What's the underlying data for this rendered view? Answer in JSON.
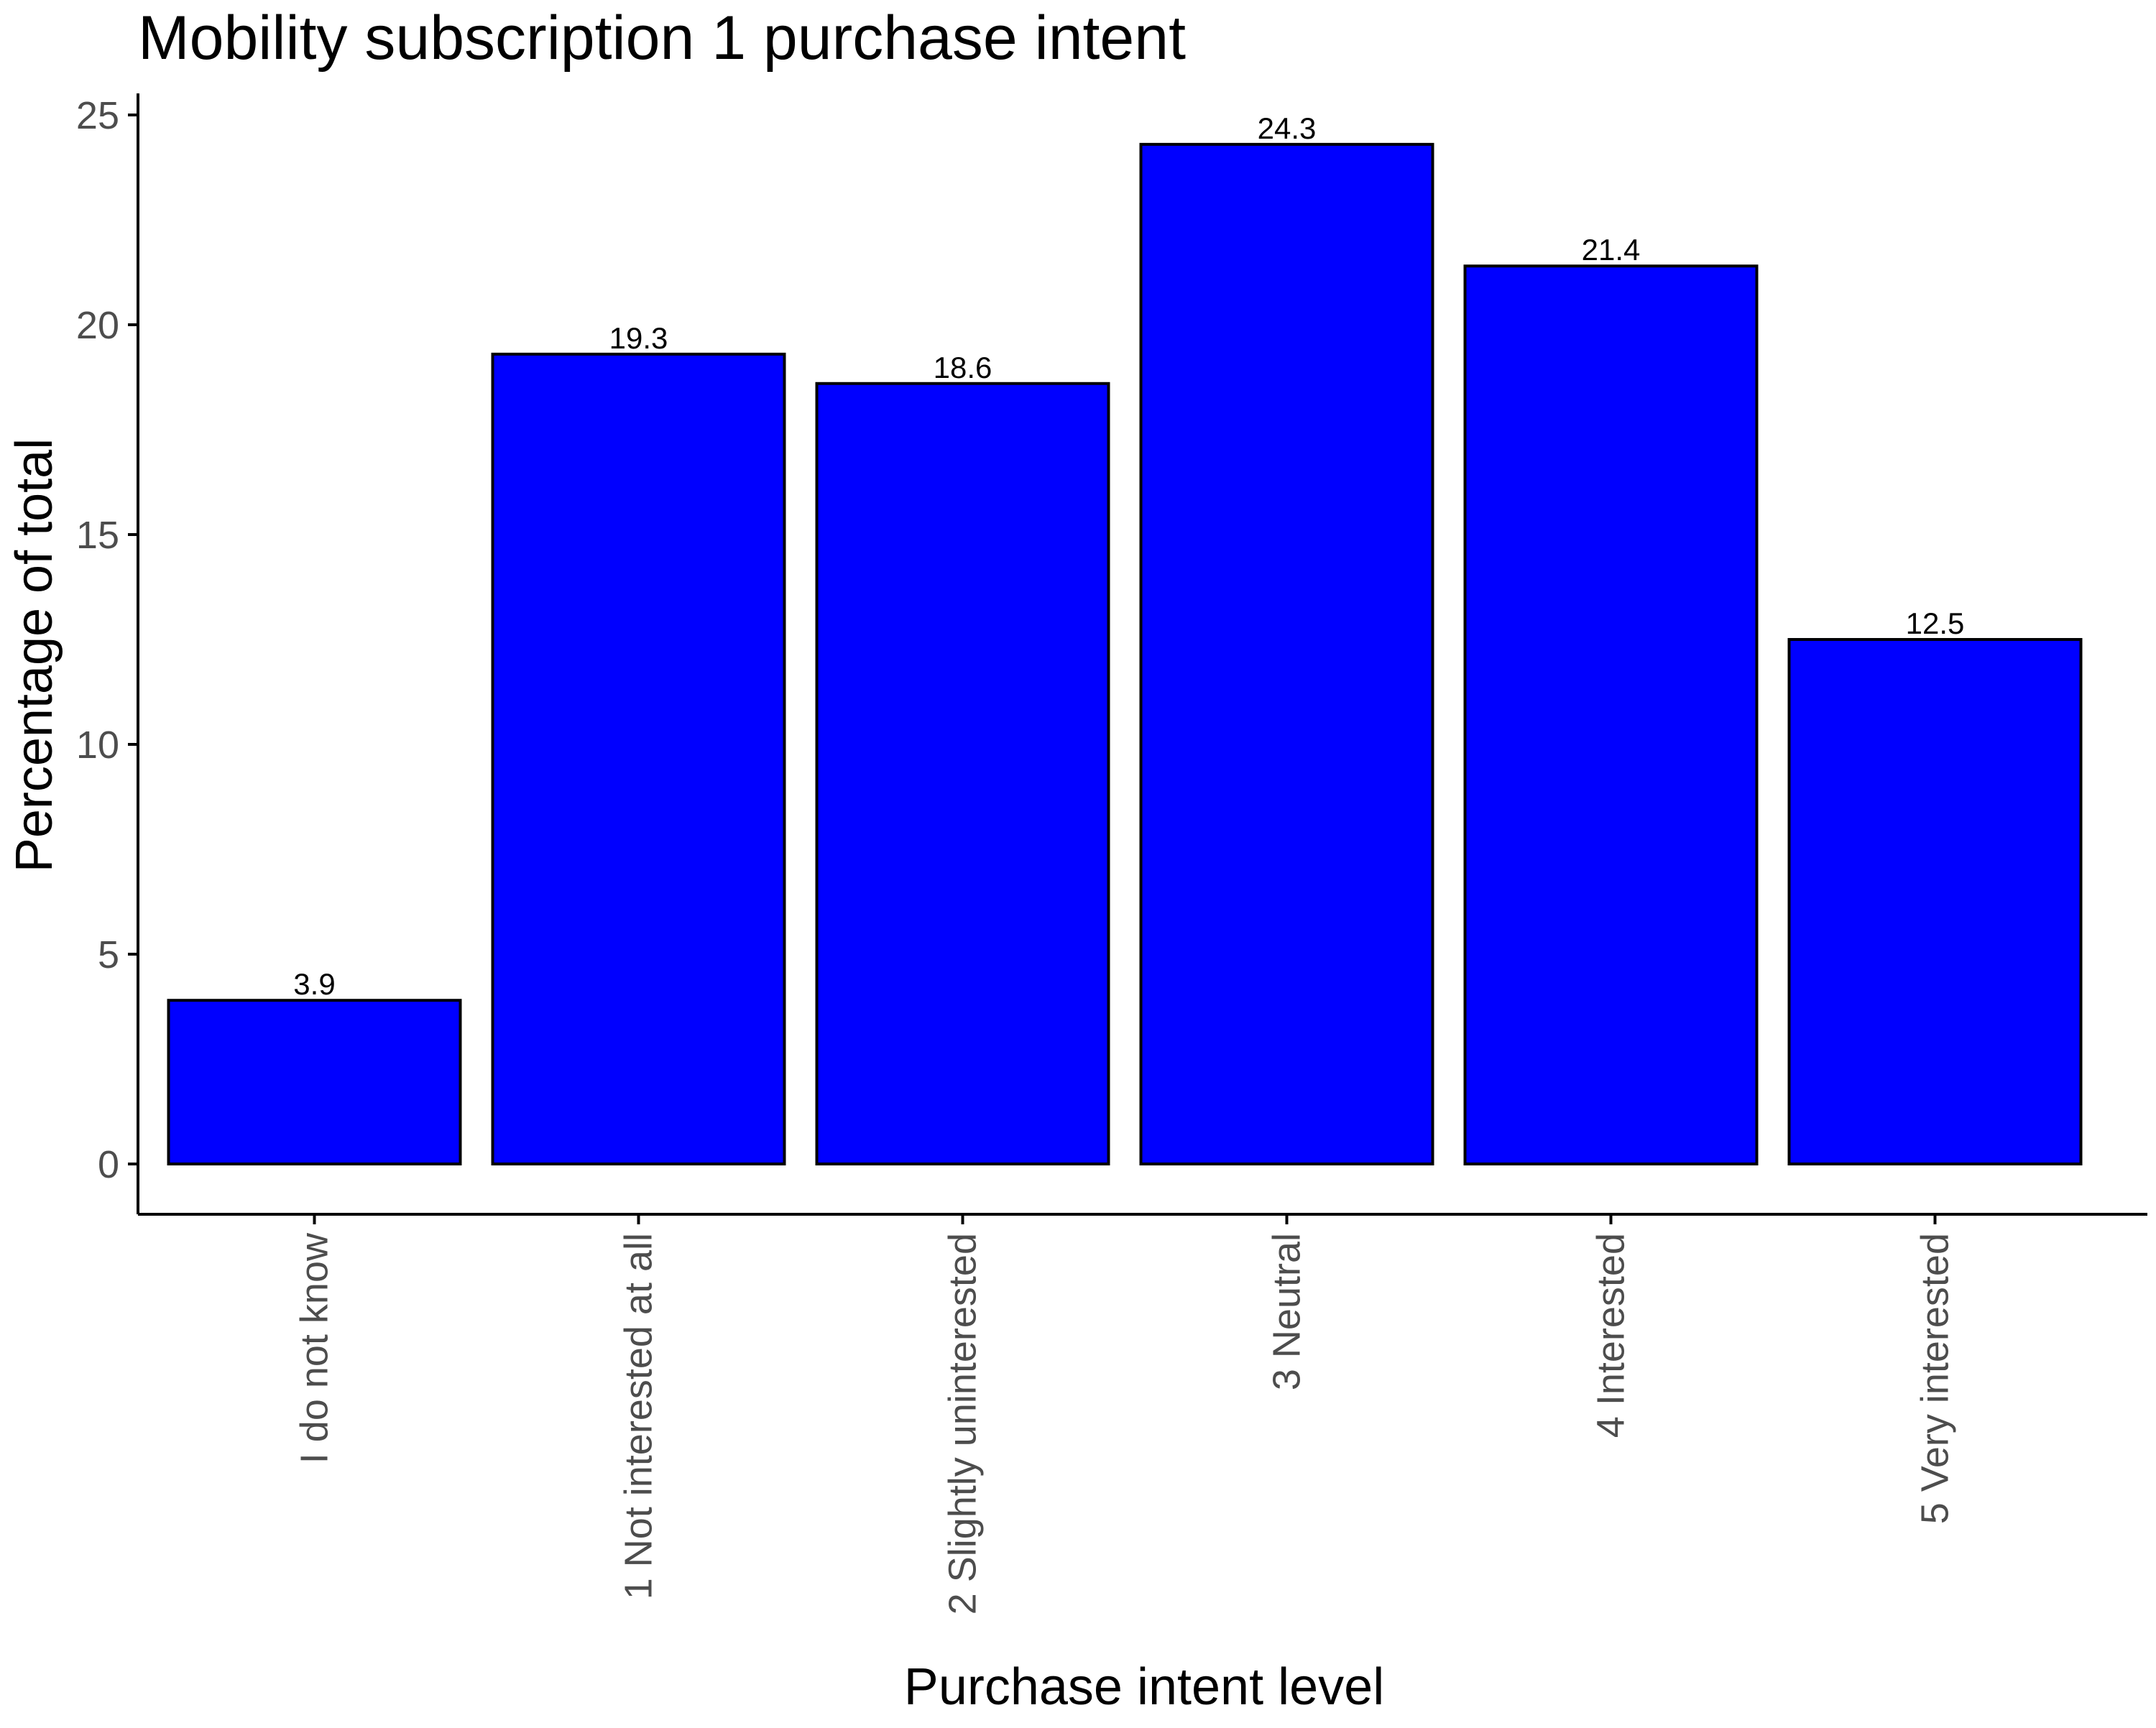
{
  "chart_data": {
    "type": "bar",
    "title": "Mobility subscription 1 purchase intent",
    "xlabel": "Purchase intent level",
    "ylabel": "Percentage of total",
    "categories": [
      "I do not know",
      "1 Not interested at all",
      "2 Slightly uninterested",
      "3 Neutral",
      "4 Interested",
      "5 Very interested"
    ],
    "values": [
      3.9,
      19.3,
      18.6,
      24.3,
      21.4,
      12.5
    ],
    "data_labels": [
      "3.9",
      "19.3",
      "18.6",
      "24.3",
      "21.4",
      "12.5"
    ],
    "ylim": [
      0,
      25
    ],
    "yticks": [
      0,
      5,
      10,
      15,
      20,
      25
    ],
    "ytick_labels": [
      "0",
      "5",
      "10",
      "15",
      "20",
      "25"
    ],
    "grid": false,
    "legend": "none",
    "colors": {
      "bar_fill": "#0000ff",
      "bar_stroke": "#000000",
      "axis": "#000000",
      "tick_text": "#4d4d4d"
    }
  }
}
